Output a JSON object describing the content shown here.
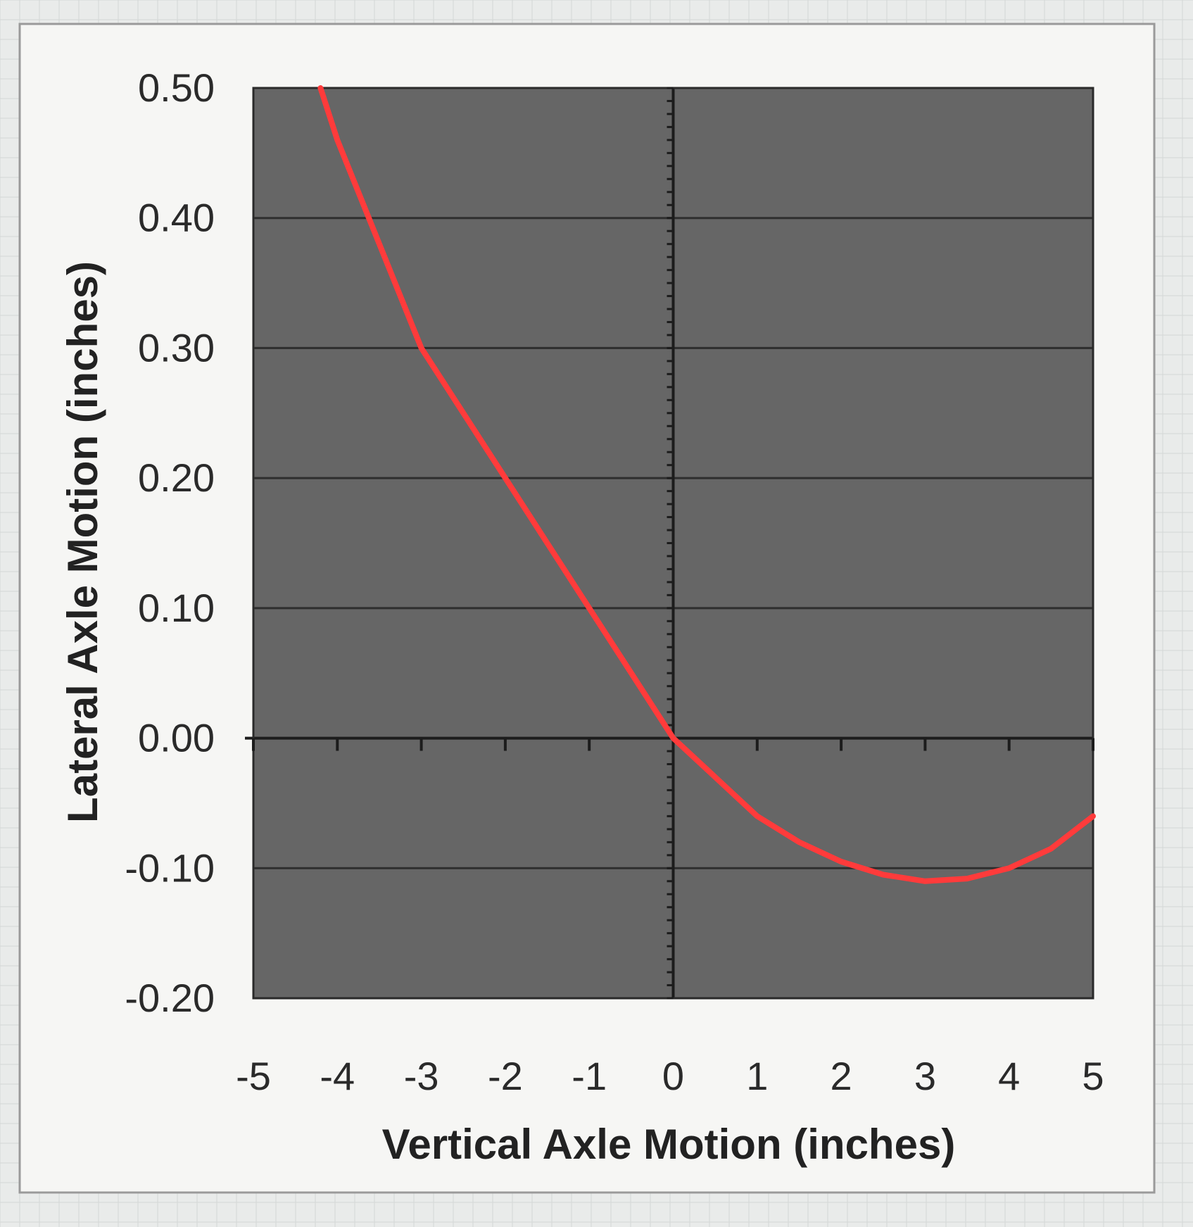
{
  "colors": {
    "page_background": "#e9ebea",
    "chart_background": "#f6f6f4",
    "plot_area": "#666666",
    "gridline": "#2e2e2e",
    "axis_line": "#1c1c1c",
    "series": "#ff3b3b"
  },
  "chart_data": {
    "type": "line",
    "title": "",
    "xlabel": "Vertical Axle Motion (inches)",
    "ylabel": "Lateral Axle Motion (inches)",
    "xlim": [
      -5,
      5
    ],
    "ylim": [
      -0.2,
      0.5
    ],
    "x_ticks": [
      -5,
      -4,
      -3,
      -2,
      -1,
      0,
      1,
      2,
      3,
      4,
      5
    ],
    "y_ticks": [
      -0.2,
      -0.1,
      0.0,
      0.1,
      0.2,
      0.3,
      0.4,
      0.5
    ],
    "x_tick_labels": [
      "-5",
      "-4",
      "-3",
      "-2",
      "-1",
      "0",
      "1",
      "2",
      "3",
      "4",
      "5"
    ],
    "y_tick_labels": [
      "-0.20",
      "-0.10",
      "0.00",
      "0.10",
      "0.20",
      "0.30",
      "0.40",
      "0.50"
    ],
    "grid": "horizontal major gridlines",
    "legend": "none",
    "series": [
      {
        "x": [
          -4.2,
          -4.0,
          -3.5,
          -3.0,
          -2.5,
          -2.0,
          -1.5,
          -1.0,
          -0.5,
          0,
          0.5,
          1.0,
          1.5,
          2.0,
          2.5,
          3.0,
          3.5,
          4.0,
          4.5,
          5.0
        ],
        "y": [
          0.5,
          0.46,
          0.38,
          0.3,
          0.25,
          0.2,
          0.15,
          0.1,
          0.05,
          0.0,
          -0.03,
          -0.06,
          -0.08,
          -0.095,
          -0.105,
          -0.11,
          -0.108,
          -0.1,
          -0.085,
          -0.06
        ]
      }
    ]
  }
}
